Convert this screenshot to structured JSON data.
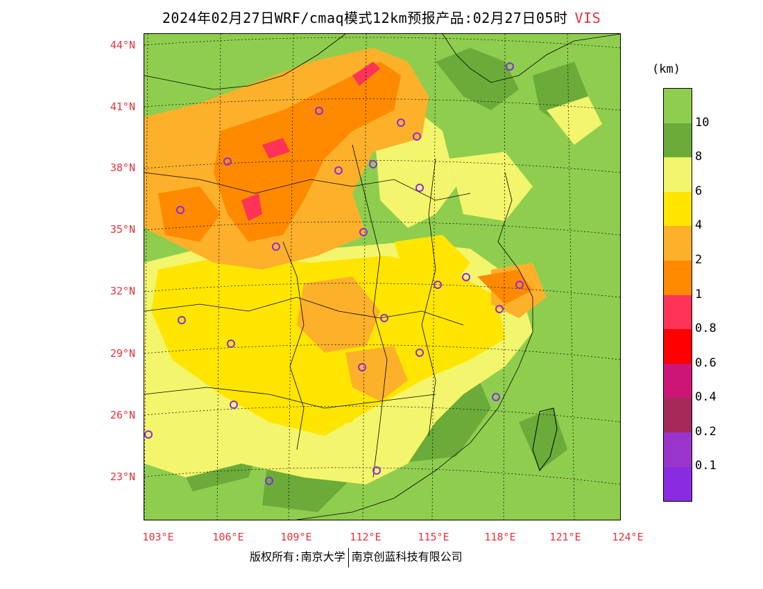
{
  "title": {
    "main": "2024年02月27日WRF/cmaq模式12km预报产品:02月27日05时",
    "variable": "VIS"
  },
  "axes": {
    "lat_labels": [
      "44°N",
      "41°N",
      "38°N",
      "35°N",
      "32°N",
      "29°N",
      "26°N",
      "23°N"
    ],
    "lon_labels": [
      "103°E",
      "106°E",
      "109°E",
      "112°E",
      "115°E",
      "118°E",
      "121°E",
      "124°E"
    ]
  },
  "legend": {
    "unit": "(km)",
    "colors": [
      "#8fcd4f",
      "#6aab39",
      "#f3f56c",
      "#ffe500",
      "#fdb02a",
      "#ff8a00",
      "#ff3358",
      "#ff0000",
      "#cd1578",
      "#a52a5a",
      "#9a35cc",
      "#8a2be2"
    ],
    "labels": [
      "10",
      "8",
      "6",
      "4",
      "2",
      "1",
      "0.8",
      "0.6",
      "0.4",
      "0.2",
      "0.1"
    ]
  },
  "footer": {
    "left": "版权所有:南京大学",
    "right": "南京创蓝科技有限公司"
  }
}
